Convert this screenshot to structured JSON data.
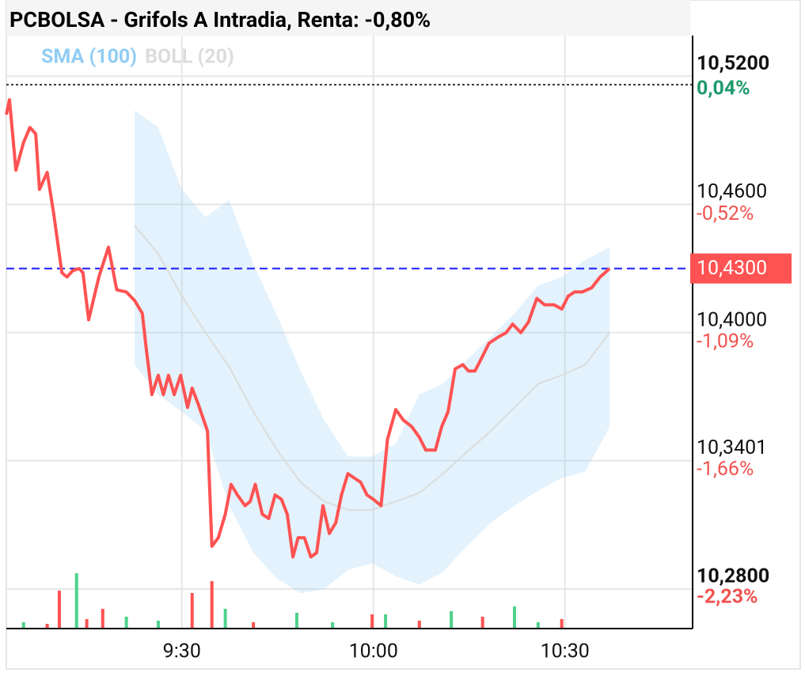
{
  "chart_data": {
    "type": "line",
    "title": "PCBOLSA - Grifols A Intradia, Renta: -0,80%",
    "xlim": [
      542.5,
      650
    ],
    "xticks": [
      {
        "value": 570,
        "label": "9:30"
      },
      {
        "value": 600,
        "label": "10:00"
      },
      {
        "value": 630,
        "label": "10:30"
      }
    ],
    "ylim": [
      10.2615,
      10.539
    ],
    "yticks": [
      {
        "value": 10.52,
        "label": "10,5200"
      },
      {
        "value": 10.46,
        "label": "10,4600"
      },
      {
        "value": 10.4,
        "label": "10,4000"
      },
      {
        "value": 10.3401,
        "label": "10,3401"
      },
      {
        "value": 10.28,
        "label": "10,2800"
      }
    ],
    "y2lim": [
      -2.418,
      0.23
    ],
    "y2ticks": [
      {
        "value": 0.04,
        "label": "0,04%"
      },
      {
        "value": -0.52,
        "label": "-0,52%"
      },
      {
        "value": -1.09,
        "label": "-1,09%"
      },
      {
        "value": -1.66,
        "label": "-1,66%"
      },
      {
        "value": -2.23,
        "label": "-2,23%"
      }
    ],
    "grid": true,
    "reference_line": 10.516,
    "last_price": {
      "value": 10.43,
      "label": "10,4300",
      "color": "#ff5252"
    },
    "price": {
      "color": "#ff5252",
      "x": [
        542.5,
        543.0,
        544.0,
        545.2,
        546.2,
        547.1,
        547.7,
        548.9,
        549.9,
        551.2,
        552.0,
        552.9,
        553.9,
        554.5,
        555.4,
        557.0,
        558.5,
        559.8,
        561.3,
        562.6,
        563.8,
        564.4,
        565.3,
        566.3,
        567.1,
        567.9,
        568.8,
        569.8,
        570.9,
        571.6,
        572.5,
        574.0,
        574.7,
        575.7,
        576.8,
        577.7,
        578.7,
        579.9,
        580.7,
        581.5,
        582.6,
        583.6,
        584.6,
        585.6,
        586.5,
        587.4,
        588.2,
        589.2,
        590.2,
        591.1,
        592.1,
        593.1,
        594.1,
        595.0,
        596.0,
        597.0,
        598.0,
        599.0,
        600.0,
        601.2,
        602.2,
        603.5,
        604.7,
        606.0,
        607.2,
        608.2,
        609.7,
        610.7,
        611.7,
        612.8,
        614.0,
        614.9,
        615.9,
        617.1,
        618.1,
        619.6,
        620.8,
        621.8,
        623.1,
        624.3,
        625.6,
        626.8,
        628.3,
        629.5,
        630.5,
        631.5,
        632.7,
        634.2,
        635.5,
        637.0
      ],
      "values": [
        10.502,
        10.509,
        10.476,
        10.489,
        10.496,
        10.493,
        10.467,
        10.475,
        10.456,
        10.428,
        10.426,
        10.429,
        10.43,
        10.428,
        10.406,
        10.426,
        10.44,
        10.42,
        10.419,
        10.415,
        10.409,
        10.393,
        10.371,
        10.38,
        10.371,
        10.38,
        10.371,
        10.38,
        10.365,
        10.374,
        10.367,
        10.354,
        10.3,
        10.304,
        10.315,
        10.329,
        10.324,
        10.319,
        10.321,
        10.329,
        10.315,
        10.313,
        10.324,
        10.322,
        10.315,
        10.295,
        10.304,
        10.304,
        10.295,
        10.297,
        10.319,
        10.306,
        10.311,
        10.324,
        10.334,
        10.332,
        10.33,
        10.324,
        10.322,
        10.319,
        10.35,
        10.364,
        10.359,
        10.356,
        10.351,
        10.345,
        10.345,
        10.356,
        10.363,
        10.383,
        10.385,
        10.382,
        10.382,
        10.389,
        10.395,
        10.398,
        10.4,
        10.404,
        10.4,
        10.405,
        10.416,
        10.413,
        10.413,
        10.411,
        10.417,
        10.419,
        10.419,
        10.421,
        10.426,
        10.43
      ]
    },
    "series": [
      {
        "name": "SMA (100)",
        "color": "#90cdf4",
        "x": [
          562.6,
          566.3,
          570.0,
          573.7,
          577.4,
          581.2,
          584.9,
          588.6,
          592.3,
          596.0,
          599.8,
          603.5,
          607.2,
          610.9,
          614.6,
          618.4,
          622.1,
          625.8,
          629.5,
          633.2,
          637.0
        ],
        "upper": [
          10.504,
          10.496,
          10.467,
          10.454,
          10.462,
          10.432,
          10.408,
          10.382,
          10.359,
          10.342,
          10.342,
          10.348,
          10.371,
          10.376,
          10.387,
          10.398,
          10.409,
          10.422,
          10.426,
          10.434,
          10.44
        ],
        "lower": [
          10.385,
          10.371,
          10.363,
          10.354,
          10.319,
          10.297,
          10.285,
          10.278,
          10.28,
          10.289,
          10.292,
          10.286,
          10.282,
          10.288,
          10.3,
          10.311,
          10.319,
          10.326,
          10.332,
          10.335,
          10.356
        ]
      },
      {
        "name": "BOLL (20)",
        "color": "#dcdcdc",
        "x": [
          562.6,
          566.3,
          570.0,
          573.7,
          577.4,
          581.2,
          584.9,
          588.6,
          592.3,
          596.0,
          599.8,
          603.5,
          607.2,
          610.9,
          614.6,
          618.4,
          622.1,
          625.8,
          629.5,
          633.2,
          637.0
        ],
        "values": [
          10.45,
          10.437,
          10.417,
          10.4,
          10.384,
          10.363,
          10.345,
          10.33,
          10.321,
          10.317,
          10.317,
          10.321,
          10.325,
          10.334,
          10.344,
          10.354,
          10.365,
          10.376,
          10.38,
          10.385,
          10.4
        ]
      }
    ],
    "volume": {
      "x": [
        545.2,
        548.9,
        550.8,
        553.5,
        555.1,
        557.6,
        561.3,
        566.3,
        571.6,
        574.7,
        576.8,
        581.2,
        588.0,
        593.6,
        599.8,
        601.9,
        607.2,
        612.2,
        617.1,
        622.1,
        625.8,
        629.5
      ],
      "values": [
        8,
        6,
        48,
        70,
        12,
        25,
        15,
        10,
        45,
        60,
        25,
        8,
        20,
        8,
        18,
        18,
        10,
        22,
        15,
        28,
        8,
        12
      ],
      "colors": [
        "#4fd18b",
        "#ff5252",
        "#ff5252",
        "#4fd18b",
        "#ff5252",
        "#ff5252",
        "#4fd18b",
        "#4fd18b",
        "#ff5252",
        "#ff5252",
        "#4fd18b",
        "#ff5252",
        "#4fd18b",
        "#4fd18b",
        "#ff5252",
        "#4fd18b",
        "#ff5252",
        "#4fd18b",
        "#ff5252",
        "#4fd18b",
        "#4fd18b",
        "#ff5252"
      ]
    }
  }
}
